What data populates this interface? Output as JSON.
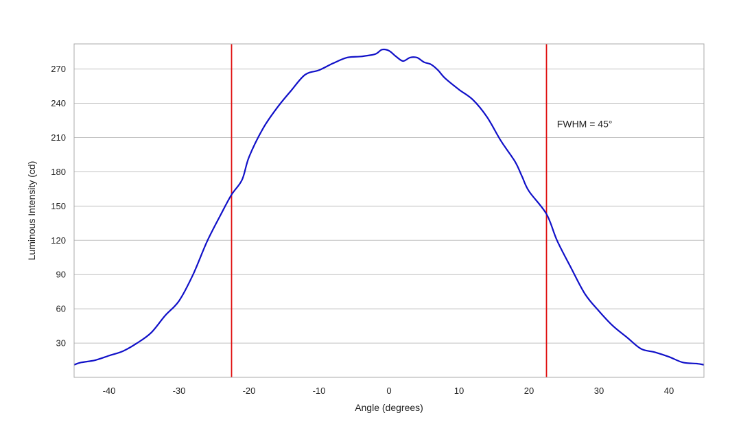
{
  "chart_data": {
    "type": "line",
    "title": "",
    "xlabel": "Angle (degrees)",
    "ylabel": "Luminous Intensity (cd)",
    "xlim": [
      -45,
      45
    ],
    "ylim": [
      0,
      292
    ],
    "xticks": [
      -40,
      -30,
      -20,
      -10,
      0,
      10,
      20,
      30,
      40
    ],
    "xtick_labels": [
      "-40",
      "-30",
      "-20",
      "-10",
      "0",
      "10",
      "20",
      "30",
      "40"
    ],
    "yticks": [
      30,
      60,
      90,
      120,
      150,
      180,
      210,
      240,
      270
    ],
    "ytick_labels": [
      "30",
      "60",
      "90",
      "120",
      "150",
      "180",
      "210",
      "240",
      "270"
    ],
    "grid": {
      "horizontal": true,
      "vertical": false
    },
    "colors": {
      "curve": "#1010c8",
      "markers": "#e01010",
      "grid": "#c0c0c0",
      "frame": "#a8a8a8"
    },
    "series": [
      {
        "color": "#1010c8",
        "x": [
          -45,
          -44,
          -42,
          -40,
          -38,
          -36,
          -34,
          -32,
          -30,
          -28,
          -26,
          -24,
          -22.5,
          -21,
          -20,
          -18,
          -16,
          -14,
          -12,
          -10,
          -8,
          -6,
          -4,
          -2,
          -1,
          0,
          1,
          2,
          3,
          4,
          5,
          6,
          7,
          8,
          10,
          12,
          14,
          16,
          18,
          19,
          20,
          22.5,
          24,
          26,
          28,
          30,
          32,
          34,
          36,
          38,
          40,
          42,
          44,
          45
        ],
        "y": [
          11,
          13,
          15,
          19,
          23,
          30,
          39,
          54,
          67,
          90,
          119,
          143,
          160,
          173,
          193,
          218,
          236,
          251,
          265,
          269,
          275,
          280,
          281,
          283,
          287,
          286,
          281,
          277,
          280,
          280,
          276,
          274,
          269,
          262,
          252,
          243,
          228,
          207,
          189,
          176,
          163,
          143,
          120,
          96,
          73,
          58,
          45,
          35,
          25,
          22,
          18,
          13,
          12,
          11
        ]
      }
    ],
    "vlines": [
      {
        "x": -22.5,
        "color": "#e01010"
      },
      {
        "x": 22.5,
        "color": "#e01010"
      }
    ],
    "annotations": [
      {
        "text": "FWHM = 45°",
        "x": 24,
        "y": 222
      }
    ]
  }
}
